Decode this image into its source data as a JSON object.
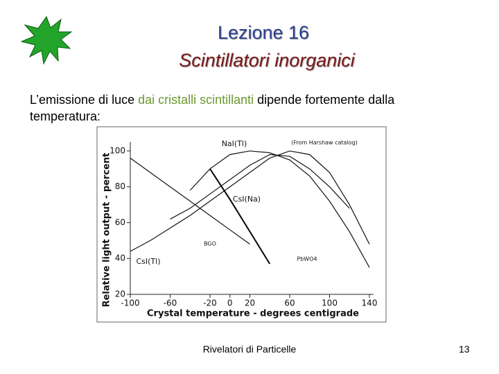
{
  "slide": {
    "title": "Lezione 16",
    "subtitle": "Scintillatori inorganici",
    "body": [
      "L’emissione di luce ",
      "dai cristalli scintillanti",
      " dipende fortemente dalla temperatura:"
    ],
    "footer": "Rivelatori di Particelle",
    "page": "13"
  },
  "chart_data": {
    "type": "line",
    "annotation": "(From Harshaw catalog)",
    "x_label": "Crystal temperature - degrees centigrade",
    "y_label": "Relative light output - percent",
    "x": [
      -100,
      -80,
      -60,
      -40,
      -20,
      0,
      20,
      40,
      60,
      80,
      100,
      120,
      140
    ],
    "series": [
      {
        "name": "NaI(Tl)",
        "color": "#111111",
        "values": [
          null,
          null,
          null,
          78,
          90,
          98,
          100,
          99,
          95,
          86,
          72,
          55,
          35
        ]
      },
      {
        "name": "CsI(Na)",
        "color": "#111111",
        "values": [
          null,
          null,
          62,
          68,
          76,
          84,
          92,
          98,
          97,
          90,
          80,
          68,
          null
        ]
      },
      {
        "name": "CsI(Tl)",
        "color": "#111111",
        "values": [
          44,
          50,
          57,
          64,
          72,
          80,
          88,
          96,
          100,
          98,
          88,
          70,
          48
        ]
      },
      {
        "name": "BGO",
        "color": "#111111",
        "values": [
          96,
          88,
          80,
          72,
          64,
          56,
          48,
          null,
          null,
          null,
          null,
          null,
          null
        ]
      },
      {
        "name": "PbWO4",
        "color": "#000000",
        "values": [
          null,
          null,
          null,
          null,
          90,
          73,
          55,
          37,
          null,
          null,
          null,
          null,
          null
        ]
      }
    ],
    "xlim": [
      -100,
      140
    ],
    "xticks": [
      -100,
      -60,
      -20,
      0,
      20,
      60,
      100,
      140
    ],
    "ylim": [
      20,
      105
    ],
    "yticks": [
      20,
      40,
      60,
      80,
      100
    ]
  }
}
